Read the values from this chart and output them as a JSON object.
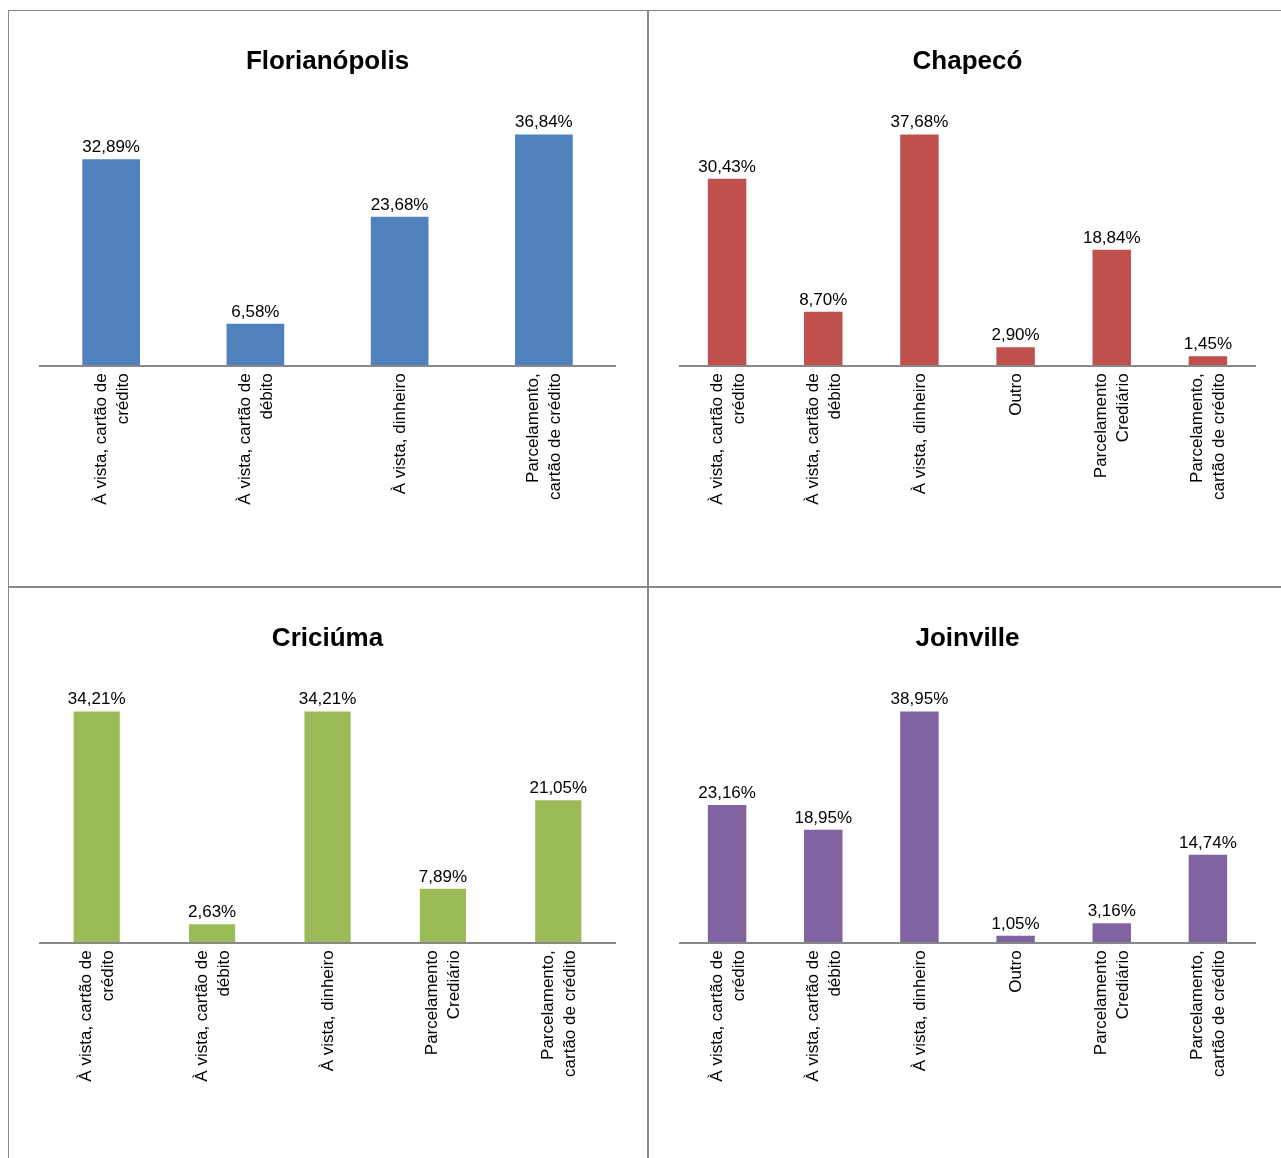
{
  "chart_data": [
    {
      "type": "bar",
      "title": "Florianópolis",
      "categories": [
        "À vista, cartão de crédito",
        "À vista, cartão de débito",
        "À vista, dinheiro",
        "Parcelamento, cartão de crédito"
      ],
      "values": [
        32.89,
        6.58,
        23.68,
        36.84
      ],
      "value_labels": [
        "32,89%",
        "6,58%",
        "23,68%",
        "36,84%"
      ],
      "color": "#4f81bd"
    },
    {
      "type": "bar",
      "title": "Chapecó",
      "categories": [
        "À vista, cartão de crédito",
        "À vista, cartão de débito",
        "À vista, dinheiro",
        "Outro",
        "Parcelamento Crediário",
        "Parcelamento, cartão de crédito"
      ],
      "values": [
        30.43,
        8.7,
        37.68,
        2.9,
        18.84,
        1.45
      ],
      "value_labels": [
        "30,43%",
        "8,70%",
        "37,68%",
        "2,90%",
        "18,84%",
        "1,45%"
      ],
      "color": "#c0504d"
    },
    {
      "type": "bar",
      "title": "Criciúma",
      "categories": [
        "À vista, cartão de crédito",
        "À vista, cartão de débito",
        "À vista, dinheiro",
        "Parcelamento Crediário",
        "Parcelamento, cartão de crédito"
      ],
      "values": [
        34.21,
        2.63,
        34.21,
        7.89,
        21.05
      ],
      "value_labels": [
        "34,21%",
        "2,63%",
        "34,21%",
        "7,89%",
        "21,05%"
      ],
      "color": "#9bbb59"
    },
    {
      "type": "bar",
      "title": "Joinville",
      "categories": [
        "À vista, cartão de crédito",
        "À vista, cartão de débito",
        "À vista, dinheiro",
        "Outro",
        "Parcelamento Crediário",
        "Parcelamento, cartão de crédito"
      ],
      "values": [
        23.16,
        18.95,
        38.95,
        1.05,
        3.16,
        14.74
      ],
      "value_labels": [
        "23,16%",
        "18,95%",
        "38,95%",
        "1,05%",
        "3,16%",
        "14,74%"
      ],
      "color": "#8064a2"
    }
  ]
}
